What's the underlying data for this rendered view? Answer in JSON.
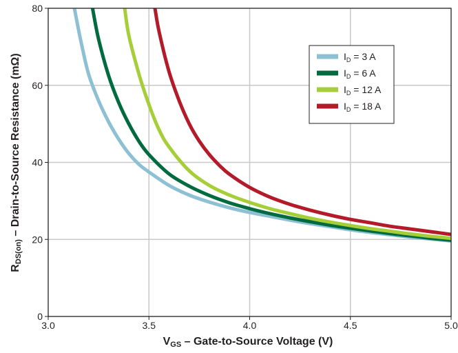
{
  "chart_data": {
    "type": "line",
    "title": "",
    "xlabel": {
      "main": "V",
      "sub": "GS",
      "rest": " – Gate-to-Source Voltage (V)"
    },
    "ylabel": {
      "main": "R",
      "sub": "DS(on)",
      "rest": " – Drain-to-Source Resistance (mΩ)"
    },
    "xlim": [
      3.0,
      5.0
    ],
    "ylim": [
      0,
      80
    ],
    "xticks": [
      3.0,
      3.5,
      4.0,
      4.5,
      5.0
    ],
    "xtick_labels": [
      "3.0",
      "3.5",
      "4.0",
      "4.5",
      "5.0"
    ],
    "yticks": [
      0,
      20,
      40,
      60,
      80
    ],
    "ytick_labels": [
      "0",
      "20",
      "40",
      "60",
      "80"
    ],
    "grid": true,
    "legend_position": "upper-right",
    "series": [
      {
        "name": "I_D = 3 A",
        "label_main": "I",
        "label_sub": "D",
        "label_rest": " = 3 A",
        "color": "#8ec0d4",
        "x": [
          3.13,
          3.16,
          3.2,
          3.25,
          3.3,
          3.35,
          3.4,
          3.45,
          3.5,
          3.6,
          3.7,
          3.8,
          3.9,
          4.0,
          4.1,
          4.2,
          4.3,
          4.4,
          4.5,
          4.6,
          4.7,
          4.8,
          4.9,
          5.0
        ],
        "y": [
          80,
          72,
          63,
          56,
          50.5,
          46,
          42.3,
          39.5,
          37.5,
          34,
          31.5,
          29.7,
          28.2,
          27,
          26,
          25,
          24.1,
          23.3,
          22.5,
          21.8,
          21.2,
          20.6,
          20.1,
          19.6
        ]
      },
      {
        "name": "I_D = 6 A",
        "label_main": "I",
        "label_sub": "D",
        "label_rest": " = 6 A",
        "color": "#006b3f",
        "x": [
          3.22,
          3.25,
          3.3,
          3.35,
          3.4,
          3.45,
          3.5,
          3.6,
          3.7,
          3.8,
          3.9,
          4.0,
          4.1,
          4.2,
          4.3,
          4.4,
          4.5,
          4.6,
          4.7,
          4.8,
          4.9,
          5.0
        ],
        "y": [
          80,
          72,
          62.5,
          55.5,
          50,
          45.5,
          42,
          37,
          33.8,
          31.4,
          29.5,
          28,
          26.7,
          25.6,
          24.6,
          23.7,
          22.9,
          22.2,
          21.5,
          20.9,
          20.3,
          19.8
        ]
      },
      {
        "name": "I_D = 12 A",
        "label_main": "I",
        "label_sub": "D",
        "label_rest": " = 12 A",
        "color": "#a6ce39",
        "x": [
          3.38,
          3.4,
          3.45,
          3.5,
          3.55,
          3.6,
          3.7,
          3.8,
          3.9,
          4.0,
          4.1,
          4.2,
          4.3,
          4.4,
          4.5,
          4.6,
          4.7,
          4.8,
          4.9,
          5.0
        ],
        "y": [
          80,
          73,
          63,
          55,
          48.5,
          44,
          37.8,
          34,
          31.5,
          29.6,
          28,
          26.7,
          25.5,
          24.5,
          23.6,
          22.8,
          22.1,
          21.4,
          20.8,
          20.3
        ]
      },
      {
        "name": "I_D = 18 A",
        "label_main": "I",
        "label_sub": "D",
        "label_rest": " = 18 A",
        "color": "#b31b2b",
        "x": [
          3.53,
          3.55,
          3.6,
          3.65,
          3.7,
          3.75,
          3.8,
          3.85,
          3.9,
          4.0,
          4.1,
          4.2,
          4.3,
          4.4,
          4.5,
          4.6,
          4.7,
          4.8,
          4.9,
          5.0
        ],
        "y": [
          80,
          74,
          63.5,
          56,
          50,
          45.5,
          42,
          39.2,
          36.9,
          33.5,
          31,
          29.1,
          27.6,
          26.3,
          25.2,
          24.3,
          23.4,
          22.7,
          22,
          21.3
        ]
      }
    ]
  }
}
